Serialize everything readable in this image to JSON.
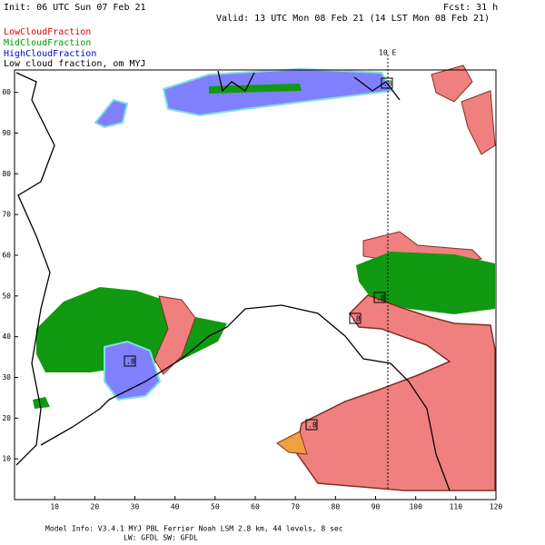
{
  "header": {
    "init": "Init: 06 UTC Sun 07 Feb 21",
    "fcst": "Fcst:    31 h",
    "valid": "Valid: 13 UTC Mon 08 Feb 21 (14 LST Mon 08 Feb 21)"
  },
  "legend": {
    "low": "LowCloudFraction",
    "mid": "MidCloudFraction",
    "high": "HighCloudFraction",
    "description": "Low cloud fraction,      om MYJ"
  },
  "meridian_label": "10 E",
  "contour_labels": [
    ".8",
    ".8",
    ".8",
    ".8",
    ".8"
  ],
  "axes": {
    "xlim": [
      0,
      120
    ],
    "ylim": [
      0,
      105.5
    ],
    "xticks": [
      10,
      20,
      30,
      40,
      50,
      60,
      70,
      80,
      90,
      100,
      110,
      120
    ],
    "yticks": [
      10,
      20,
      30,
      40,
      50,
      60,
      70,
      80,
      90,
      {
        "value": 100,
        "label": "00"
      }
    ]
  },
  "footer": {
    "model_info": "Model Info: V3.4.1      MYJ PBL  Ferrier      Noah LSM  2.8 km,  44 levels,   8 sec",
    "radiation": "LW: GFDL SW: GFDL"
  }
}
